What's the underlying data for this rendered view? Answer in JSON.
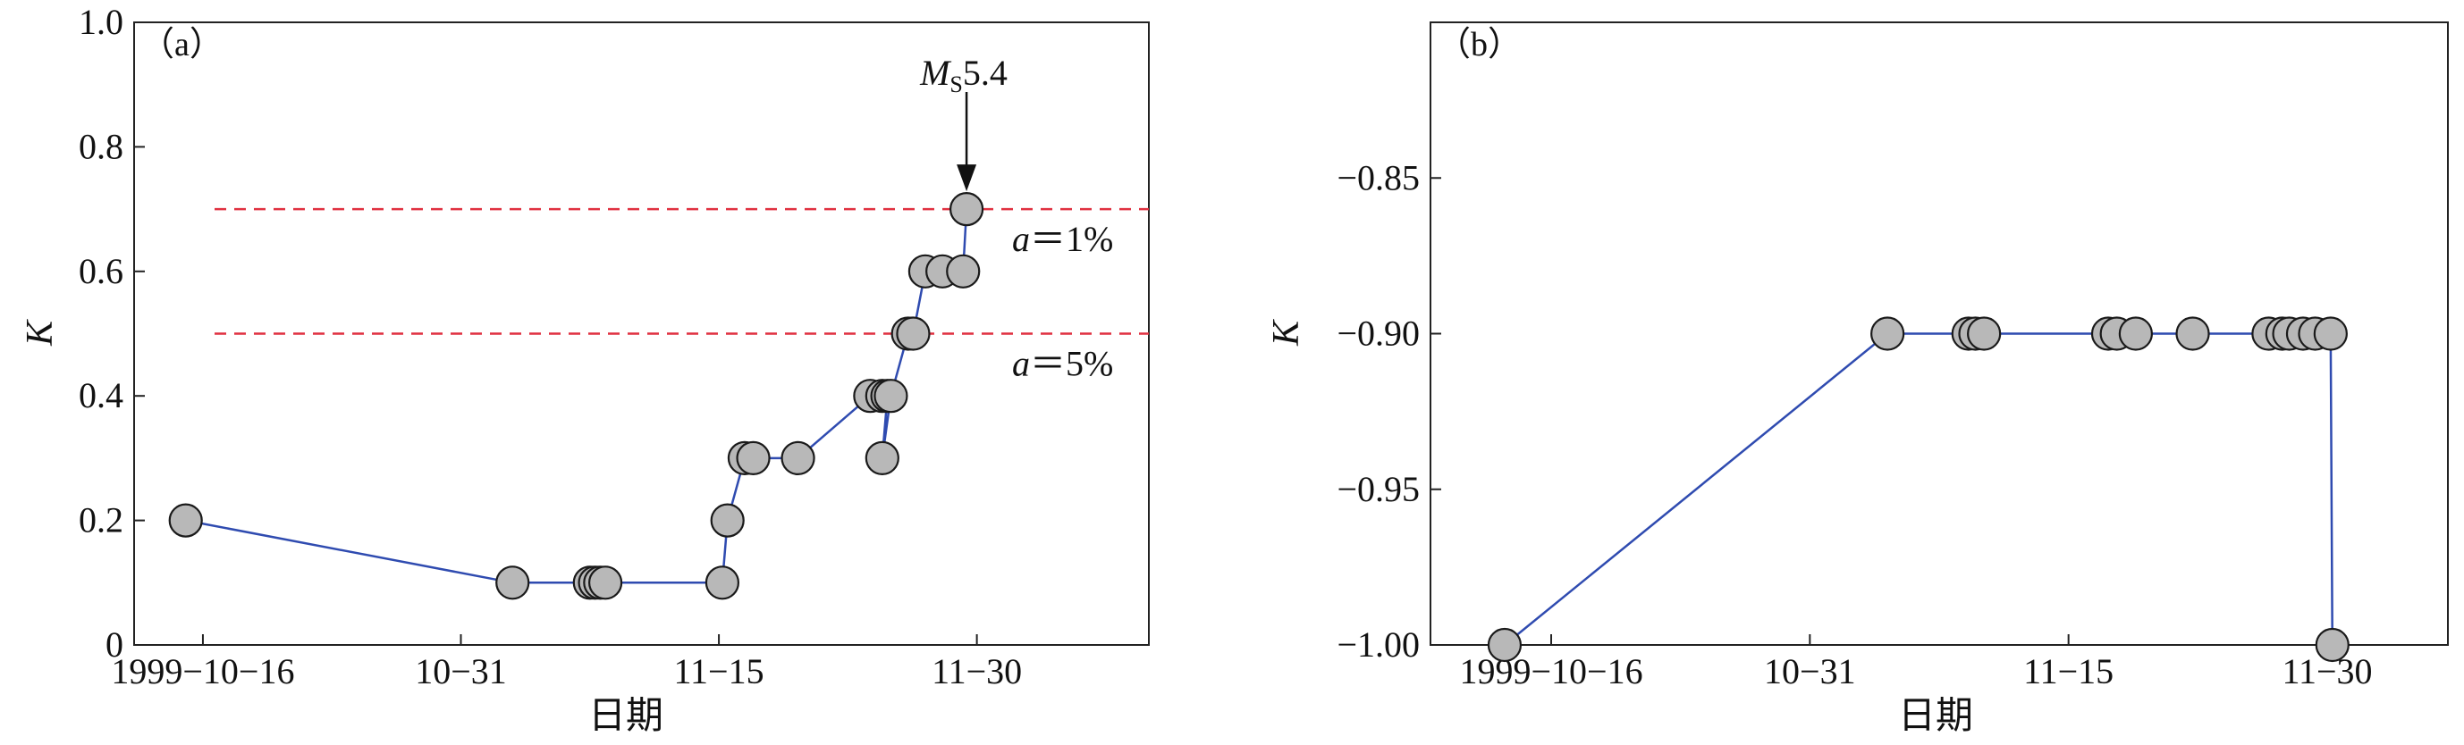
{
  "chart_data": [
    {
      "type": "line",
      "panel_label": "（a）",
      "xlabel": "日期",
      "ylabel": "K",
      "x_domain": [
        "1999-10-12",
        "1999-12-10"
      ],
      "ylim": [
        0,
        1.0
      ],
      "x_ticks": [
        {
          "date": "1999-10-16",
          "label": "1999−10−16"
        },
        {
          "date": "1999-10-31",
          "label": "10−31"
        },
        {
          "date": "1999-11-15",
          "label": "11−15"
        },
        {
          "date": "1999-11-30",
          "label": "11−30"
        }
      ],
      "y_ticks": [
        {
          "value": 0,
          "label": "0"
        },
        {
          "value": 0.2,
          "label": "0.2"
        },
        {
          "value": 0.4,
          "label": "0.4"
        },
        {
          "value": 0.6,
          "label": "0.6"
        },
        {
          "value": 0.8,
          "label": "0.8"
        },
        {
          "value": 1.0,
          "label": "1.0"
        }
      ],
      "series": [
        {
          "name": "K",
          "points": [
            {
              "x": "1999-10-15",
              "y": 0.2
            },
            {
              "x": "1999-11-03",
              "y": 0.1
            },
            {
              "x": "1999-11-07.5",
              "y": 0.1
            },
            {
              "x": "1999-11-07.8",
              "y": 0.1
            },
            {
              "x": "1999-11-08.1",
              "y": 0.1
            },
            {
              "x": "1999-11-08.4",
              "y": 0.1
            },
            {
              "x": "1999-11-15.2",
              "y": 0.1
            },
            {
              "x": "1999-11-15.5",
              "y": 0.2
            },
            {
              "x": "1999-11-16.5",
              "y": 0.3
            },
            {
              "x": "1999-11-17.0",
              "y": 0.3
            },
            {
              "x": "1999-11-19.6",
              "y": 0.3
            },
            {
              "x": "1999-11-23.8",
              "y": 0.4
            },
            {
              "x": "1999-11-24.5",
              "y": 0.4
            },
            {
              "x": "1999-11-24.8",
              "y": 0.4
            },
            {
              "x": "1999-11-24.5b",
              "y": 0.3
            },
            {
              "x": "1999-11-25.0",
              "y": 0.4
            },
            {
              "x": "1999-11-26.0",
              "y": 0.5
            },
            {
              "x": "1999-11-26.3",
              "y": 0.5
            },
            {
              "x": "1999-11-27.0",
              "y": 0.6
            },
            {
              "x": "1999-11-28.0",
              "y": 0.6
            },
            {
              "x": "1999-11-29.2",
              "y": 0.6
            },
            {
              "x": "1999-11-29.4",
              "y": 0.7
            }
          ]
        }
      ],
      "reference_lines": [
        {
          "y": 0.7,
          "label_prefix": "a",
          "label_suffix": "＝1%",
          "color": "#e03040"
        },
        {
          "y": 0.5,
          "label_prefix": "a",
          "label_suffix": "＝5%",
          "color": "#e03040"
        }
      ],
      "annotation": {
        "text_main": "M",
        "text_sub": "S",
        "text_value": "5.4",
        "x": "1999-11-29.4",
        "y": 0.7
      }
    },
    {
      "type": "line",
      "panel_label": "（b）",
      "xlabel": "日期",
      "ylabel": "K",
      "x_domain": [
        "1999-10-09",
        "1999-12-07"
      ],
      "ylim": [
        -1.0,
        -0.8
      ],
      "x_ticks": [
        {
          "date": "1999-10-16",
          "label": "1999−10−16"
        },
        {
          "date": "1999-10-31",
          "label": "10−31"
        },
        {
          "date": "1999-11-15",
          "label": "11−15"
        },
        {
          "date": "1999-11-30",
          "label": "11−30"
        }
      ],
      "y_ticks": [
        {
          "value": -0.85,
          "label": "−0.85"
        },
        {
          "value": -0.9,
          "label": "−0.90"
        },
        {
          "value": -0.95,
          "label": "−0.95"
        },
        {
          "value": -1.0,
          "label": "−1.00"
        }
      ],
      "series": [
        {
          "name": "K",
          "points": [
            {
              "x": "1999-10-13.3",
              "y": -1.0
            },
            {
              "x": "1999-11-04.5",
              "y": -0.9
            },
            {
              "x": "1999-11-09.2",
              "y": -0.9
            },
            {
              "x": "1999-11-09.6",
              "y": -0.9
            },
            {
              "x": "1999-11-10.1",
              "y": -0.9
            },
            {
              "x": "1999-11-17.3",
              "y": -0.9
            },
            {
              "x": "1999-11-17.8",
              "y": -0.9
            },
            {
              "x": "1999-11-18.9",
              "y": -0.9
            },
            {
              "x": "1999-11-22.2",
              "y": -0.9
            },
            {
              "x": "1999-11-26.6",
              "y": -0.9
            },
            {
              "x": "1999-11-27.4",
              "y": -0.9
            },
            {
              "x": "1999-11-27.8",
              "y": -0.9
            },
            {
              "x": "1999-11-28.6",
              "y": -0.9
            },
            {
              "x": "1999-11-29.3",
              "y": -0.9
            },
            {
              "x": "1999-11-30.2",
              "y": -0.9
            },
            {
              "x": "1999-11-30.3",
              "y": -1.0
            }
          ]
        }
      ]
    }
  ]
}
